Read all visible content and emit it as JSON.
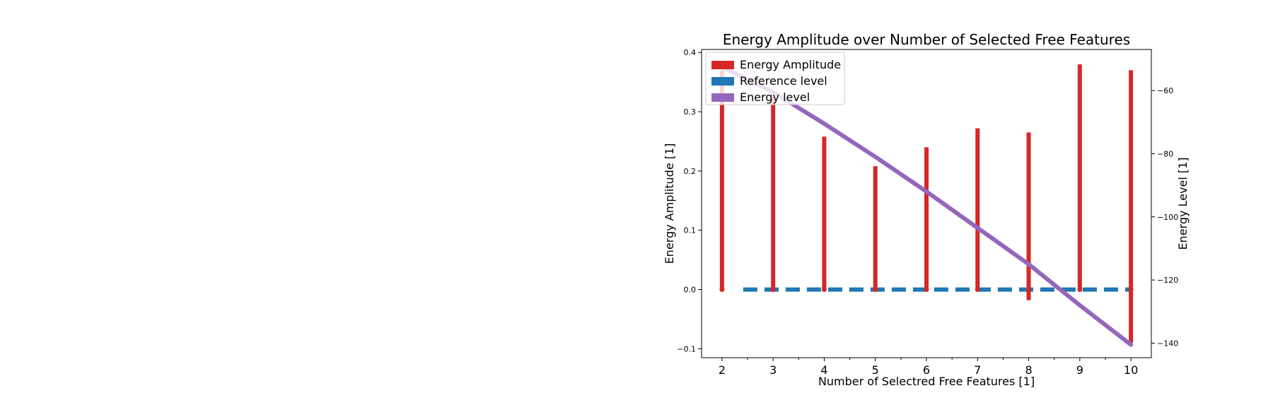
{
  "chart_data": {
    "type": "bar",
    "title": "Energy Amplitude over Number of Selected Free Features",
    "xlabel": "Number of Selectred Free Features [1]",
    "ylabel": "Energy Amplitude [1]",
    "y2label": "Energy Level [1]",
    "x": [
      2,
      3,
      4,
      5,
      6,
      7,
      8,
      9,
      10
    ],
    "xticks": [
      "2",
      "3",
      "4",
      "5",
      "6",
      "7",
      "8",
      "9",
      "10"
    ],
    "xlim": [
      1.6,
      10.4
    ],
    "ylim": [
      -0.115,
      0.405
    ],
    "yticks": [
      "−0.1",
      "0.0",
      "0.1",
      "0.2",
      "0.3",
      "0.4"
    ],
    "ytick_values": [
      -0.1,
      0.0,
      0.1,
      0.2,
      0.3,
      0.4
    ],
    "y2lim": [
      -144.6,
      -47.0
    ],
    "y2ticks": [
      "−140",
      "−120",
      "−100",
      "−80",
      "−60"
    ],
    "y2tick_values": [
      -140,
      -120,
      -100,
      -80,
      -60
    ],
    "legend_position": "top-left",
    "series": [
      {
        "name": "Energy Amplitude",
        "kind": "stem",
        "axis": "left",
        "color": "#d62728",
        "values": [
          0.37,
          0.325,
          0.258,
          0.208,
          0.24,
          0.272,
          0.265,
          0.38,
          0.37
        ],
        "lower": [
          0.0,
          0.0,
          0.0,
          0.0,
          0.0,
          0.0,
          -0.018,
          0.0,
          -0.09
        ]
      },
      {
        "name": "Reference level",
        "kind": "dashed-line",
        "axis": "left",
        "color": "#1f77b4",
        "value": 0.0
      },
      {
        "name": "Energy level",
        "kind": "line",
        "axis": "right",
        "color": "#9467bd",
        "values": [
          -52.5,
          -60.5,
          -70.5,
          -81,
          -92,
          -103.5,
          -115,
          -128,
          -140.5
        ]
      }
    ]
  }
}
